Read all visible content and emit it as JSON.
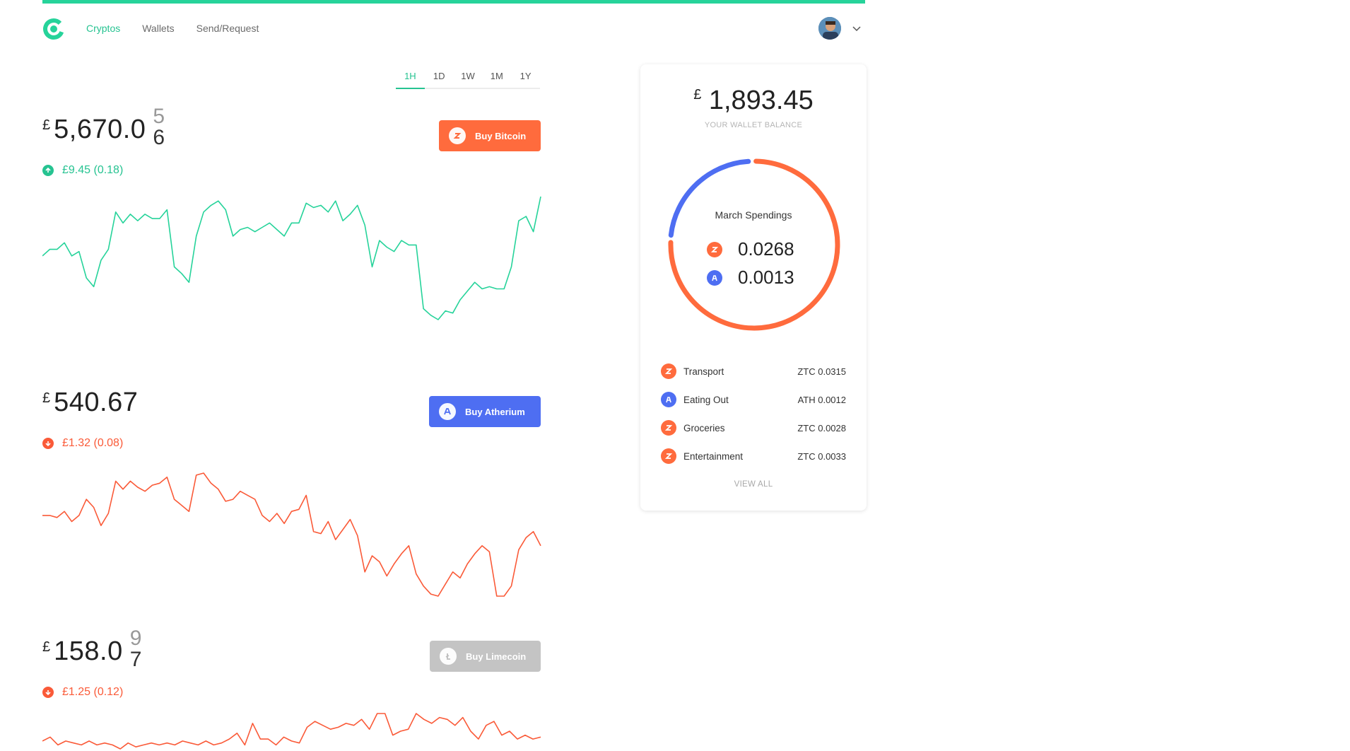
{
  "nav": {
    "items": [
      {
        "label": "Cryptos",
        "active": true
      },
      {
        "label": "Wallets",
        "active": false
      },
      {
        "label": "Send/Request",
        "active": false
      }
    ]
  },
  "ranges": [
    "1H",
    "1D",
    "1W",
    "1M",
    "1Y"
  ],
  "active_range": "1H",
  "coins": [
    {
      "currency": "£",
      "price": "5,670.0",
      "rolling_digits": [
        "5",
        "6"
      ],
      "change": "£9.45 (0.18)",
      "trend": "up",
      "buy_label": "Buy Bitcoin",
      "button_color": "#ff6b3d",
      "line_color": "#26d39a",
      "series": [
        45,
        48,
        48,
        51,
        45,
        47,
        35,
        31,
        43,
        48,
        65,
        60,
        64,
        61,
        64,
        62,
        62,
        66,
        40,
        37,
        33,
        54,
        65,
        68,
        70,
        66,
        54,
        57,
        58,
        56,
        58,
        60,
        57,
        54,
        60,
        60,
        69,
        67,
        68,
        65,
        70,
        61,
        64,
        68,
        59,
        40,
        52,
        49,
        47,
        52,
        50,
        50,
        21,
        18,
        16,
        20,
        19,
        25,
        29,
        33,
        30,
        31,
        30,
        30,
        40,
        61,
        63,
        56,
        72
      ]
    },
    {
      "currency": "£",
      "price": "540.67",
      "rolling_digits": [],
      "change": "£1.32 (0.08)",
      "trend": "down",
      "buy_label": "Buy Atherium",
      "button_color": "#4e6ef2",
      "line_color": "#fa5a38",
      "series": [
        55,
        55,
        54,
        57,
        52,
        55,
        63,
        59,
        50,
        56,
        72,
        68,
        72,
        69,
        67,
        70,
        71,
        74,
        63,
        60,
        57,
        75,
        76,
        71,
        68,
        62,
        63,
        67,
        65,
        63,
        55,
        52,
        56,
        51,
        57,
        58,
        65,
        47,
        46,
        52,
        43,
        48,
        53,
        45,
        27,
        35,
        32,
        25,
        31,
        36,
        40,
        26,
        20,
        16,
        15,
        21,
        27,
        24,
        31,
        36,
        40,
        37,
        15,
        15,
        20,
        38,
        44,
        47,
        40
      ]
    },
    {
      "currency": "£",
      "price": "158.0",
      "rolling_digits": [
        "9",
        "7"
      ],
      "change": "£1.25 (0.12)",
      "trend": "down",
      "buy_label": "Buy Limecoin",
      "button_color": "#c4c4c4",
      "line_color": "#fa5a38",
      "series": [
        5,
        7,
        3,
        5,
        4,
        3,
        5,
        3,
        4,
        3,
        1,
        4,
        2,
        3,
        4,
        3,
        4,
        3,
        5,
        4,
        3,
        5,
        3,
        4,
        6,
        9,
        3,
        14,
        6,
        6,
        3,
        7,
        5,
        4,
        12,
        15,
        13,
        11,
        12,
        14,
        13,
        16,
        11,
        19,
        19,
        8,
        10,
        11,
        19,
        16,
        14,
        17,
        16,
        13,
        17,
        10,
        6,
        13,
        15,
        8,
        10,
        6,
        8,
        6,
        7
      ]
    }
  ],
  "wallet": {
    "currency": "£",
    "balance": "1,893.45",
    "balance_label": "YOUR WALLET BALANCE",
    "donut_title": "March Spendings",
    "spendings": [
      {
        "value": "0.0268",
        "coin": "ZTC",
        "color": "#ff6b3d"
      },
      {
        "value": "0.0013",
        "coin": "ATH",
        "color": "#4e6ef2"
      }
    ],
    "transactions": [
      {
        "label": "Transport",
        "amount": "ZTC 0.0315",
        "color": "#ff6b3d"
      },
      {
        "label": "Eating Out",
        "amount": "ATH 0.0012",
        "color": "#4e6ef2"
      },
      {
        "label": "Groceries",
        "amount": "ZTC 0.0028",
        "color": "#ff6b3d"
      },
      {
        "label": "Entertainment",
        "amount": "ZTC 0.0033",
        "color": "#ff6b3d"
      }
    ],
    "view_all": "VIEW ALL"
  },
  "colors": {
    "accent": "#26d39a",
    "up": "#26c391",
    "down": "#fa5a38"
  }
}
